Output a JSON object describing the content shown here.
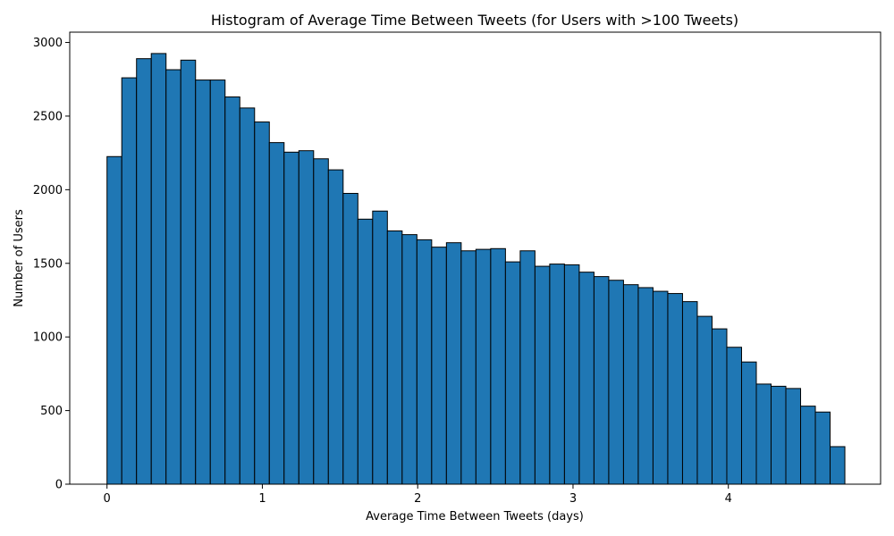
{
  "colors": {
    "bar_fill": "#1f77b4",
    "bar_edge": "#000000",
    "axis": "#000000",
    "background": "#ffffff"
  },
  "chart_data": {
    "type": "bar",
    "subtype": "histogram",
    "title": "Histogram of Average Time Between Tweets (for Users with >100 Tweets)",
    "xlabel": "Average Time Between Tweets (days)",
    "ylabel": "Number of Users",
    "xlim": [
      -0.24,
      4.98
    ],
    "ylim": [
      0,
      3070
    ],
    "xticks": [
      0,
      1,
      2,
      3,
      4
    ],
    "yticks": [
      0,
      500,
      1000,
      1500,
      2000,
      2500,
      3000
    ],
    "grid": false,
    "legend": "none",
    "bin_edges": [
      0.0,
      0.095,
      0.19,
      0.285,
      0.38,
      0.475,
      0.57,
      0.665,
      0.76,
      0.855,
      0.95,
      1.045,
      1.14,
      1.235,
      1.33,
      1.425,
      1.52,
      1.615,
      1.71,
      1.805,
      1.9,
      1.995,
      2.09,
      2.185,
      2.28,
      2.375,
      2.47,
      2.565,
      2.66,
      2.755,
      2.85,
      2.945,
      3.04,
      3.135,
      3.23,
      3.325,
      3.42,
      3.515,
      3.61,
      3.705,
      3.8,
      3.895,
      3.99,
      4.085,
      4.18,
      4.275,
      4.37,
      4.465,
      4.56,
      4.655,
      4.75
    ],
    "values": [
      2225,
      2760,
      2890,
      2925,
      2815,
      2880,
      2745,
      2745,
      2630,
      2555,
      2460,
      2320,
      2255,
      2265,
      2210,
      2135,
      1975,
      1800,
      1855,
      1720,
      1695,
      1660,
      1610,
      1640,
      1585,
      1595,
      1600,
      1510,
      1585,
      1480,
      1495,
      1490,
      1440,
      1410,
      1385,
      1355,
      1335,
      1310,
      1295,
      1240,
      1140,
      1055,
      930,
      830,
      680,
      665,
      650,
      530,
      490,
      255
    ]
  }
}
